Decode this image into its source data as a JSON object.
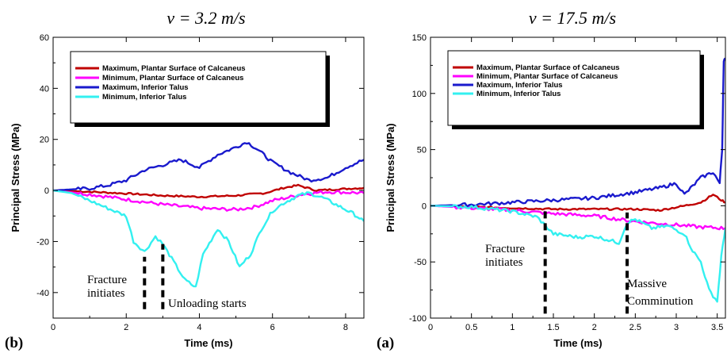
{
  "chart_data": [
    {
      "type": "line",
      "panel": "(b)",
      "title": "v = 3.2 m/s",
      "xlabel": "Time (ms)",
      "ylabel": "Principal Stress (MPa)",
      "xlim": [
        0,
        8.5
      ],
      "ylim": [
        -50,
        60
      ],
      "xticks": [
        0,
        2,
        4,
        6,
        8
      ],
      "yticks": [
        -40,
        -20,
        0,
        20,
        40,
        60
      ],
      "legend_position": "top-left",
      "series": [
        {
          "name": "Maximum, Plantar Surface of Calcaneus",
          "color": "#c00000",
          "x": [
            0,
            1,
            2,
            3,
            4,
            5,
            5.8,
            6.3,
            6.7,
            7.2,
            7.8,
            8.5
          ],
          "y": [
            0,
            -0.5,
            -1.2,
            -2,
            -2.5,
            -2,
            -1,
            1,
            2,
            0,
            0.5,
            1
          ]
        },
        {
          "name": "Minimum, Plantar Surface of Calcaneus",
          "color": "#ff00ff",
          "x": [
            0,
            1,
            2,
            3,
            4,
            5,
            5.5,
            6,
            6.5,
            6.8,
            7.5,
            8.5
          ],
          "y": [
            0,
            -1.5,
            -3.5,
            -5.5,
            -7,
            -7.5,
            -6.5,
            -4,
            -2.5,
            -1.5,
            -0.5,
            -1
          ]
        },
        {
          "name": "Maximum, Inferior Talus",
          "color": "#1a1acd",
          "x": [
            0,
            1,
            1.5,
            2,
            2.5,
            3,
            3.5,
            4,
            4.5,
            5,
            5.3,
            5.6,
            6,
            6.5,
            7,
            7.5,
            8,
            8.5
          ],
          "y": [
            0,
            0.8,
            2,
            4,
            8,
            10,
            12,
            9,
            14,
            17,
            19,
            16,
            11,
            7,
            4,
            5,
            9,
            12
          ]
        },
        {
          "name": "Minimum, Inferior Talus",
          "color": "#33f0f0",
          "x": [
            0,
            0.5,
            1,
            1.5,
            2,
            2.2,
            2.5,
            2.8,
            3,
            3.3,
            3.6,
            3.9,
            4.1,
            4.5,
            4.8,
            5.1,
            5.4,
            5.7,
            6,
            6.3,
            6.7,
            7,
            7.4,
            7.8,
            8.2,
            8.5
          ],
          "y": [
            0,
            -1,
            -4,
            -7,
            -10,
            -20,
            -24,
            -18,
            -21,
            -28,
            -35,
            -38,
            -25,
            -15,
            -20,
            -30,
            -25,
            -15,
            -8,
            -5,
            -2,
            -1,
            -3,
            -6,
            -9,
            -12
          ]
        }
      ],
      "annotations": [
        {
          "text": [
            "Fracture",
            "initiates"
          ],
          "x": 2.5,
          "y": -43
        },
        {
          "text": [
            "Unloading starts"
          ],
          "x": 3.0,
          "y": -44.5
        }
      ]
    },
    {
      "type": "line",
      "panel": "(a)",
      "title": "v = 17.5 m/s",
      "xlabel": "Time (ms)",
      "ylabel": "Principal Stress (MPa)",
      "xlim": [
        0,
        3.6
      ],
      "ylim": [
        -100,
        150
      ],
      "xticks": [
        0,
        0.5,
        1,
        1.5,
        2,
        2.5,
        3,
        3.5
      ],
      "yticks": [
        -100,
        -50,
        0,
        50,
        100,
        150
      ],
      "legend_position": "top-left",
      "series": [
        {
          "name": "Maximum, Plantar Surface of Calcaneus",
          "color": "#c00000",
          "x": [
            0,
            0.5,
            1,
            1.5,
            2,
            2.5,
            2.8,
            3.1,
            3.3,
            3.45,
            3.55,
            3.6
          ],
          "y": [
            0,
            -1,
            -2,
            -3,
            -3,
            -3,
            -4,
            0,
            3,
            10,
            5,
            3
          ]
        },
        {
          "name": "Minimum, Plantar Surface of Calcaneus",
          "color": "#ff00ff",
          "x": [
            0,
            0.5,
            1,
            1.5,
            2,
            2.5,
            3,
            3.3,
            3.6
          ],
          "y": [
            0,
            -2,
            -4,
            -7,
            -9,
            -14,
            -17,
            -19,
            -20
          ]
        },
        {
          "name": "Maximum, Inferior Talus",
          "color": "#1a1acd",
          "x": [
            0,
            0.5,
            1,
            1.5,
            2,
            2.3,
            2.5,
            2.8,
            3,
            3.1,
            3.3,
            3.45,
            3.53,
            3.56,
            3.58,
            3.6
          ],
          "y": [
            0,
            1,
            3,
            5,
            7,
            10,
            12,
            16,
            20,
            10,
            25,
            30,
            20,
            50,
            130,
            130
          ]
        },
        {
          "name": "Minimum, Inferior Talus",
          "color": "#33f0f0",
          "x": [
            0,
            0.5,
            1,
            1.3,
            1.5,
            1.8,
            2,
            2.3,
            2.4,
            2.5,
            2.7,
            2.9,
            3.1,
            3.2,
            3.3,
            3.4,
            3.5,
            3.55,
            3.6
          ],
          "y": [
            0,
            -1,
            -5,
            -10,
            -25,
            -28,
            -27,
            -33,
            -15,
            -12,
            -20,
            -18,
            -25,
            -40,
            -50,
            -75,
            -85,
            -45,
            -20
          ]
        }
      ],
      "annotations": [
        {
          "text": [
            "Fracture",
            "initiates"
          ],
          "x": 1.4,
          "y": -95
        },
        {
          "text": [
            "Massive",
            "Comminution"
          ],
          "x": 2.4,
          "y": -95
        }
      ]
    }
  ]
}
